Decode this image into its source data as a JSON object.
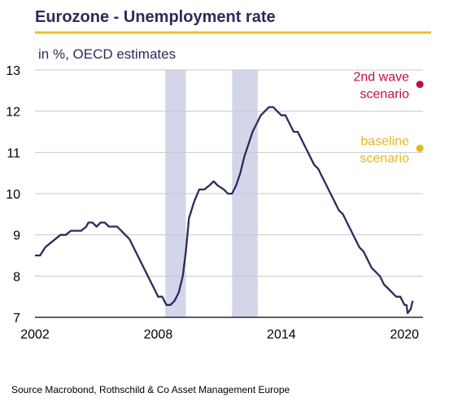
{
  "header": {
    "title": "Eurozone - Unemployment rate",
    "subtitle": "in %, OECD estimates"
  },
  "footer": {
    "source": "Source Macrobond, Rothschild & Co Asset Management Europe"
  },
  "colors": {
    "title": "#2e2a5c",
    "accent_line": "#e8c12a",
    "series_line": "#2e2a5c",
    "recession_band": "#d3d6e8",
    "scenario_2nd_wave": "#c0103c",
    "scenario_baseline": "#e3b81d",
    "axis_text": "#000000"
  },
  "chart_data": {
    "type": "line",
    "title": "Eurozone - Unemployment rate",
    "subtitle": "in %, OECD estimates",
    "xlabel": "",
    "ylabel": "",
    "xlim": [
      2002.0,
      2020.9
    ],
    "ylim": [
      7,
      13
    ],
    "y_ticks": [
      7,
      8,
      9,
      10,
      11,
      12,
      13
    ],
    "x_ticks": [
      {
        "value": 2002,
        "label": "2002"
      },
      {
        "value": 2008,
        "label": "2008"
      },
      {
        "value": 2014,
        "label": "2014"
      },
      {
        "value": 2020,
        "label": "2020"
      }
    ],
    "grid": true,
    "shaded_periods": [
      {
        "start": 2008.35,
        "end": 2009.35
      },
      {
        "start": 2011.6,
        "end": 2012.85
      }
    ],
    "series": [
      {
        "points": [
          [
            2002.0,
            8.5
          ],
          [
            2002.25,
            8.5
          ],
          [
            2002.5,
            8.7
          ],
          [
            2002.75,
            8.8
          ],
          [
            2003.0,
            8.9
          ],
          [
            2003.25,
            9.0
          ],
          [
            2003.5,
            9.0
          ],
          [
            2003.75,
            9.1
          ],
          [
            2004.0,
            9.1
          ],
          [
            2004.25,
            9.1
          ],
          [
            2004.5,
            9.2
          ],
          [
            2004.6,
            9.3
          ],
          [
            2004.8,
            9.3
          ],
          [
            2005.0,
            9.2
          ],
          [
            2005.2,
            9.3
          ],
          [
            2005.4,
            9.3
          ],
          [
            2005.6,
            9.2
          ],
          [
            2006.0,
            9.2
          ],
          [
            2006.2,
            9.1
          ],
          [
            2006.4,
            9.0
          ],
          [
            2006.6,
            8.9
          ],
          [
            2006.8,
            8.7
          ],
          [
            2007.0,
            8.5
          ],
          [
            2007.2,
            8.3
          ],
          [
            2007.4,
            8.1
          ],
          [
            2007.6,
            7.9
          ],
          [
            2007.8,
            7.7
          ],
          [
            2008.0,
            7.5
          ],
          [
            2008.2,
            7.5
          ],
          [
            2008.4,
            7.3
          ],
          [
            2008.6,
            7.3
          ],
          [
            2008.8,
            7.4
          ],
          [
            2009.0,
            7.6
          ],
          [
            2009.2,
            8.0
          ],
          [
            2009.35,
            8.6
          ],
          [
            2009.5,
            9.4
          ],
          [
            2009.75,
            9.8
          ],
          [
            2010.0,
            10.1
          ],
          [
            2010.25,
            10.1
          ],
          [
            2010.5,
            10.2
          ],
          [
            2010.7,
            10.3
          ],
          [
            2010.9,
            10.2
          ],
          [
            2011.2,
            10.1
          ],
          [
            2011.4,
            10.0
          ],
          [
            2011.6,
            10.0
          ],
          [
            2011.8,
            10.2
          ],
          [
            2012.0,
            10.5
          ],
          [
            2012.2,
            10.9
          ],
          [
            2012.4,
            11.2
          ],
          [
            2012.6,
            11.5
          ],
          [
            2012.8,
            11.7
          ],
          [
            2013.0,
            11.9
          ],
          [
            2013.2,
            12.0
          ],
          [
            2013.4,
            12.1
          ],
          [
            2013.6,
            12.1
          ],
          [
            2013.8,
            12.0
          ],
          [
            2014.0,
            11.9
          ],
          [
            2014.2,
            11.9
          ],
          [
            2014.4,
            11.7
          ],
          [
            2014.6,
            11.5
          ],
          [
            2014.8,
            11.5
          ],
          [
            2015.0,
            11.3
          ],
          [
            2015.2,
            11.1
          ],
          [
            2015.4,
            10.9
          ],
          [
            2015.6,
            10.7
          ],
          [
            2015.8,
            10.6
          ],
          [
            2016.0,
            10.4
          ],
          [
            2016.2,
            10.2
          ],
          [
            2016.4,
            10.0
          ],
          [
            2016.6,
            9.8
          ],
          [
            2016.8,
            9.6
          ],
          [
            2017.0,
            9.5
          ],
          [
            2017.2,
            9.3
          ],
          [
            2017.4,
            9.1
          ],
          [
            2017.6,
            8.9
          ],
          [
            2017.8,
            8.7
          ],
          [
            2018.0,
            8.6
          ],
          [
            2018.2,
            8.4
          ],
          [
            2018.4,
            8.2
          ],
          [
            2018.6,
            8.1
          ],
          [
            2018.8,
            8.0
          ],
          [
            2019.0,
            7.8
          ],
          [
            2019.2,
            7.7
          ],
          [
            2019.4,
            7.6
          ],
          [
            2019.6,
            7.5
          ],
          [
            2019.8,
            7.5
          ],
          [
            2020.0,
            7.3
          ],
          [
            2020.1,
            7.3
          ],
          [
            2020.15,
            7.1
          ],
          [
            2020.3,
            7.2
          ],
          [
            2020.4,
            7.4
          ]
        ]
      }
    ],
    "annotations": [
      {
        "lines": [
          "2nd wave",
          "scenario"
        ],
        "x": 2020.75,
        "y": 12.65,
        "color": "#c0103c"
      },
      {
        "lines": [
          "baseline",
          "scenario"
        ],
        "x": 2020.75,
        "y": 11.1,
        "color": "#e3b81d"
      }
    ]
  }
}
